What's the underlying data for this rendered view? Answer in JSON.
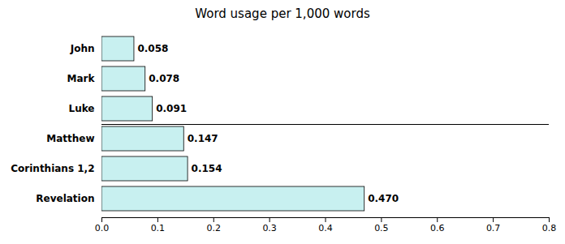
{
  "chart_data": {
    "type": "bar",
    "orientation": "horizontal",
    "title": "Word usage per 1,000 words",
    "categories": [
      "Revelation",
      "Corinthians 1,2",
      "Matthew",
      "Luke",
      "Mark",
      "John"
    ],
    "values": [
      0.47,
      0.154,
      0.147,
      0.091,
      0.078,
      0.058
    ],
    "value_labels": [
      "0.470",
      "0.154",
      "0.147",
      "0.091",
      "0.078",
      "0.058"
    ],
    "data_labels": true,
    "color": "#c8f0f0",
    "xlim": [
      0.0,
      0.8
    ],
    "xticks": [
      {
        "value": 0,
        "label": "0.0"
      },
      0.1,
      0.2,
      0.3,
      0.4,
      0.5,
      0.6,
      0.7,
      0.8
    ],
    "grid": false
  }
}
